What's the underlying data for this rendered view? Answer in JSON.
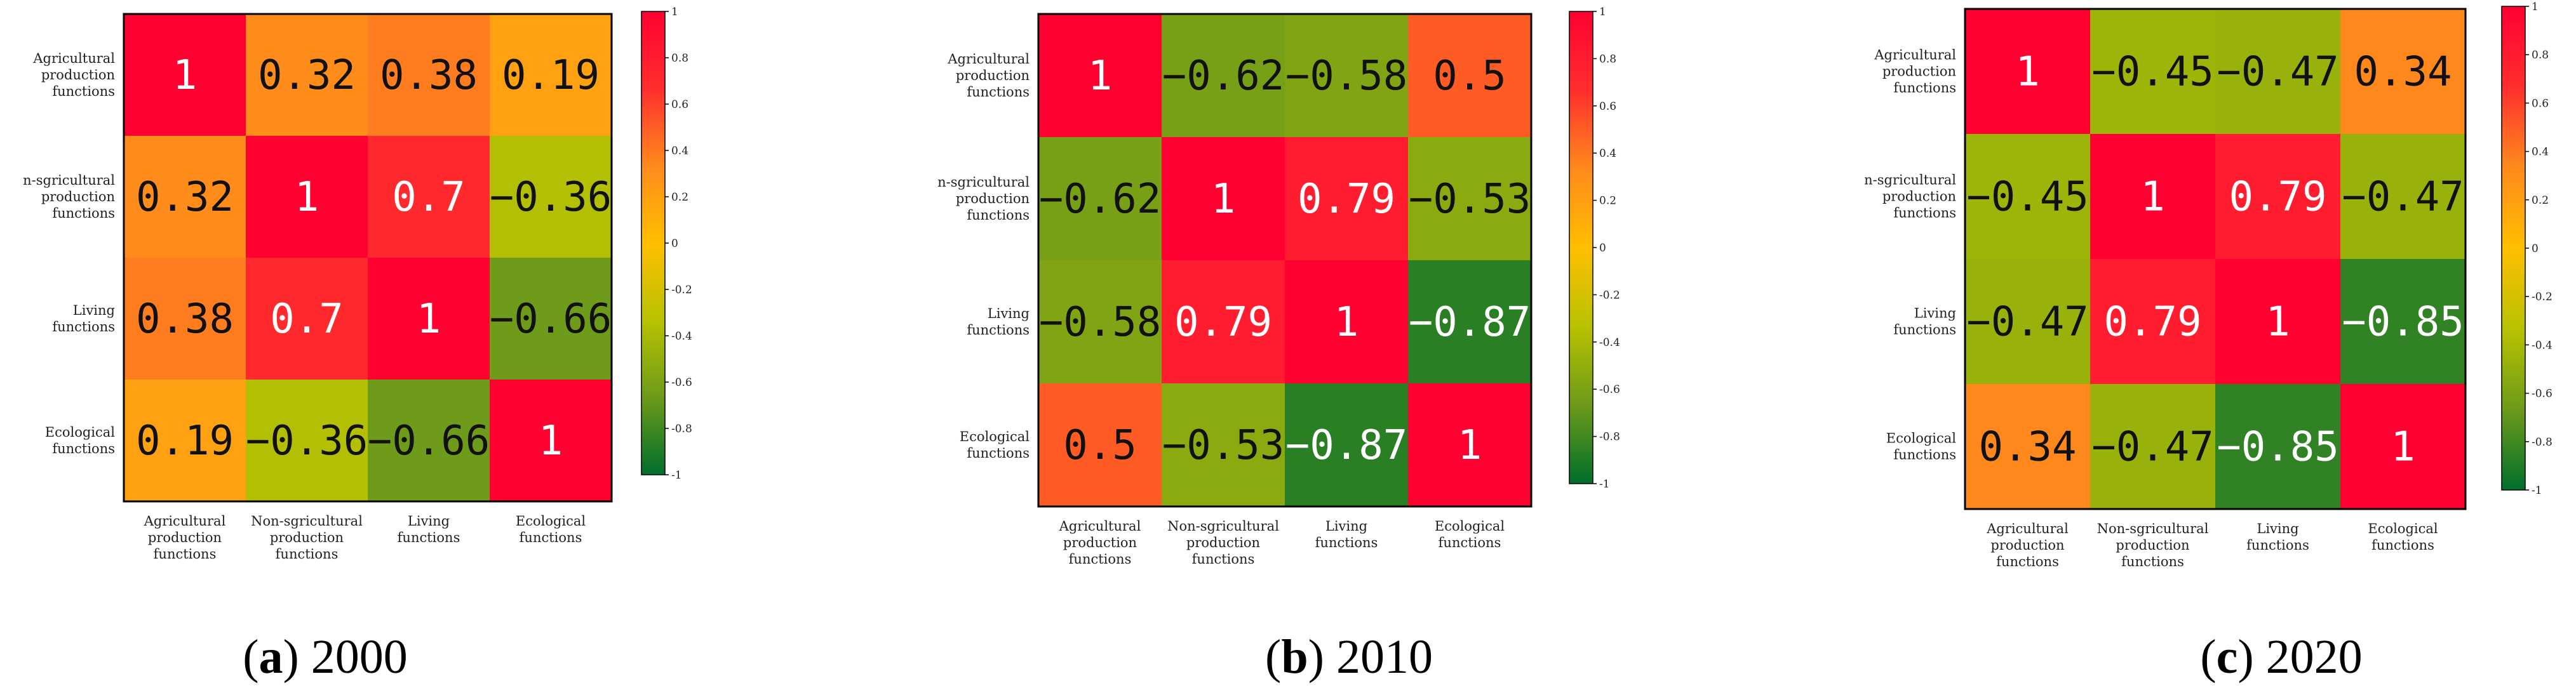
{
  "chart_data": [
    {
      "type": "heatmap",
      "caption_letter": "a",
      "caption_year": "2000",
      "row_labels": [
        [
          "Agricultural",
          "production",
          "functions"
        ],
        [
          "n-sgricultural",
          "production",
          "functions"
        ],
        [
          "Living",
          "functions"
        ],
        [
          "Ecological",
          "functions"
        ]
      ],
      "col_labels": [
        [
          "Agricultural",
          "production",
          "functions"
        ],
        [
          "Non-sgricultural",
          "production",
          "functions"
        ],
        [
          "Living",
          "functions"
        ],
        [
          "Ecological",
          "functions"
        ]
      ],
      "values": [
        [
          1,
          0.32,
          0.38,
          0.19
        ],
        [
          0.32,
          1,
          0.7,
          -0.36
        ],
        [
          0.38,
          0.7,
          1,
          -0.66
        ],
        [
          0.19,
          -0.36,
          -0.66,
          1
        ]
      ],
      "value_labels": [
        [
          "1",
          "0.32",
          "0.38",
          "0.19"
        ],
        [
          "0.32",
          "1",
          "0.7",
          "-0.36"
        ],
        [
          "0.38",
          "0.7",
          "1",
          "-0.66"
        ],
        [
          "0.19",
          "-0.36",
          "-0.66",
          "1"
        ]
      ],
      "colorbar_range": [
        -1,
        1
      ],
      "colorbar_ticks": [
        "1",
        "0.8",
        "0.6",
        "0.4",
        "0.2",
        "0",
        "-0.2",
        "-0.4",
        "-0.6",
        "-0.8",
        "-1"
      ]
    },
    {
      "type": "heatmap",
      "caption_letter": "b",
      "caption_year": "2010",
      "row_labels": [
        [
          "Agricultural",
          "production",
          "functions"
        ],
        [
          "n-sgricultural",
          "production",
          "functions"
        ],
        [
          "Living",
          "functions"
        ],
        [
          "Ecological",
          "functions"
        ]
      ],
      "col_labels": [
        [
          "Agricultural",
          "production",
          "functions"
        ],
        [
          "Non-sgricultural",
          "production",
          "functions"
        ],
        [
          "Living",
          "functions"
        ],
        [
          "Ecological",
          "functions"
        ]
      ],
      "values": [
        [
          1,
          -0.62,
          -0.58,
          0.5
        ],
        [
          -0.62,
          1,
          0.79,
          -0.53
        ],
        [
          -0.58,
          0.79,
          1,
          -0.87
        ],
        [
          0.5,
          -0.53,
          -0.87,
          1
        ]
      ],
      "value_labels": [
        [
          "1",
          "-0.62",
          "-0.58",
          "0.5"
        ],
        [
          "-0.62",
          "1",
          "0.79",
          "-0.53"
        ],
        [
          "-0.58",
          "0.79",
          "1",
          "-0.87"
        ],
        [
          "0.5",
          "-0.53",
          "-0.87",
          "1"
        ]
      ],
      "colorbar_range": [
        -1,
        1
      ],
      "colorbar_ticks": [
        "1",
        "0.8",
        "0.6",
        "0.4",
        "0.2",
        "0",
        "-0.2",
        "-0.4",
        "-0.6",
        "-0.8",
        "-1"
      ]
    },
    {
      "type": "heatmap",
      "caption_letter": "c",
      "caption_year": "2020",
      "row_labels": [
        [
          "Agricultural",
          "production",
          "functions"
        ],
        [
          "n-sgricultural",
          "production",
          "functions"
        ],
        [
          "Living",
          "functions"
        ],
        [
          "Ecological",
          "functions"
        ]
      ],
      "col_labels": [
        [
          "Agricultural",
          "production",
          "functions"
        ],
        [
          "Non-sgricultural",
          "production",
          "functions"
        ],
        [
          "Living",
          "functions"
        ],
        [
          "Ecological",
          "functions"
        ]
      ],
      "values": [
        [
          1,
          -0.45,
          -0.47,
          0.34
        ],
        [
          -0.45,
          1,
          0.79,
          -0.47
        ],
        [
          -0.47,
          0.79,
          1,
          -0.85
        ],
        [
          0.34,
          -0.47,
          -0.85,
          1
        ]
      ],
      "value_labels": [
        [
          "1",
          "-0.45",
          "-0.47",
          "0.34"
        ],
        [
          "-0.45",
          "1",
          "0.79",
          "-0.47"
        ],
        [
          "-0.47",
          "0.79",
          "1",
          "-0.85"
        ],
        [
          "0.34",
          "-0.47",
          "-0.85",
          "1"
        ]
      ],
      "colorbar_range": [
        -1,
        1
      ],
      "colorbar_ticks": [
        "1",
        "0.8",
        "0.6",
        "0.4",
        "0.2",
        "0",
        "-0.2",
        "-0.4",
        "-0.6",
        "-0.8",
        "-1"
      ]
    }
  ],
  "colors": {
    "scale": [
      "#006e2c",
      "#6c9a1a",
      "#b8c200",
      "#ffbf00",
      "#ff8a1c",
      "#ff2e2e",
      "#ff0030"
    ],
    "text_dark": "#111111",
    "text_light": "#ffffff"
  }
}
